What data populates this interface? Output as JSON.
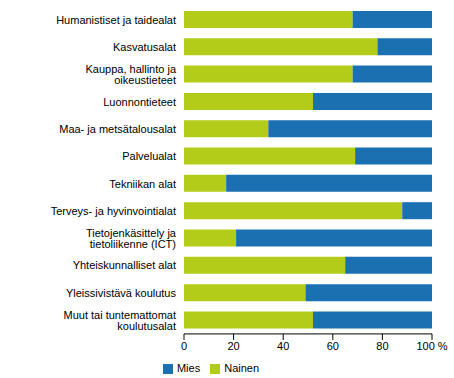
{
  "chart_data": {
    "type": "bar",
    "orientation": "horizontal",
    "stacked": true,
    "grid": false,
    "legend": "bottom",
    "categories": [
      "Humanistiset ja taidealat",
      "Kasvatusalat",
      "Kauppa, hallinto ja oikeustieteet",
      "Luonnontieteet",
      "Maa- ja metsätalousalat",
      "Palvelualat",
      "Tekniikan alat",
      "Terveys- ja hyvinvointialat",
      "Tietojenkäsittely ja tietoliikenne (ICT)",
      "Yhteiskunnalliset alat",
      "Yleissivistävä koulutus",
      "Muut tai tuntemattomat koulutusalat"
    ],
    "series": [
      {
        "name": "Nainen",
        "color": "#b3cc1a",
        "values": [
          68,
          78,
          68,
          52,
          34,
          69,
          17,
          88,
          21,
          65,
          49,
          52
        ]
      },
      {
        "name": "Mies",
        "color": "#1a70b0",
        "values": [
          32,
          22,
          32,
          48,
          66,
          31,
          83,
          12,
          79,
          35,
          51,
          48
        ]
      }
    ],
    "xlim": [
      0,
      100
    ],
    "xticks": [
      0,
      20,
      40,
      60,
      80,
      {
        "value": 100,
        "label": "100 %"
      }
    ]
  }
}
